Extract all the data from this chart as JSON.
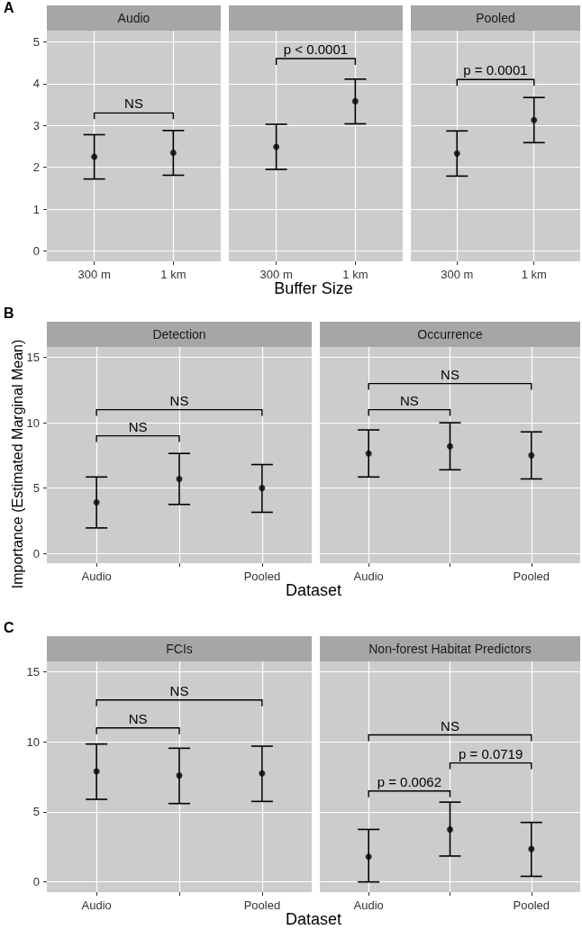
{
  "chart_data": [
    {
      "type": "scatter",
      "title": "Audio",
      "categories": [
        "300 m",
        "1 km"
      ],
      "values": [
        2.25,
        2.35
      ],
      "errors": [
        [
          1.72,
          2.78
        ],
        [
          1.81,
          2.88
        ]
      ],
      "color": "#000000",
      "marker": "circle",
      "ylim": [
        -0.25,
        5.27
      ],
      "yticks": [
        0,
        1,
        2,
        3,
        4,
        5
      ],
      "grid": true,
      "annotations": [
        "A",
        "NS"
      ]
    },
    {
      "type": "scatter",
      "title": null,
      "categories": [
        "300 m",
        "1 km"
      ],
      "values": [
        2.49,
        3.58
      ],
      "errors": [
        [
          1.95,
          3.03
        ],
        [
          3.04,
          4.11
        ]
      ],
      "color": "#000000",
      "marker": "circle",
      "ylim": [
        -0.25,
        5.27
      ],
      "yticks": [
        0,
        1,
        2,
        3,
        4,
        5
      ],
      "grid": true,
      "tick_labels": "x",
      "xlabel": "Buffer Size",
      "annotations": [
        "p < 0.0001"
      ]
    },
    {
      "type": "scatter",
      "title": "Pooled",
      "categories": [
        "300 m",
        "1 km"
      ],
      "values": [
        2.33,
        3.13
      ],
      "errors": [
        [
          1.79,
          2.87
        ],
        [
          2.59,
          3.67
        ]
      ],
      "color": "#000000",
      "marker": "circle",
      "ylim": [
        -0.25,
        5.27
      ],
      "yticks": [
        0,
        1,
        2,
        3,
        4,
        5
      ],
      "grid": true,
      "tick_labels": "x",
      "annotations": [
        "p = 0.0001"
      ]
    },
    {
      "type": "scatter",
      "title": "Detection",
      "categories": [
        "Audio",
        null,
        "Pooled"
      ],
      "values": [
        3.9,
        5.7,
        5.0
      ],
      "errors": [
        [
          1.95,
          5.85
        ],
        [
          3.75,
          7.65
        ],
        [
          3.15,
          6.8
        ]
      ],
      "color": "#000000",
      "marker": "circle",
      "ylim": [
        -0.75,
        15.8
      ],
      "yticks": [
        0,
        5,
        10,
        15
      ],
      "grid": true,
      "xlabel": "Dataset",
      "ylabel": "Importance (Estimated Marginal Mean)",
      "annotations": [
        "B",
        "NS",
        "NS"
      ]
    },
    {
      "type": "scatter",
      "title": "Occurrence",
      "categories": [
        "Audio",
        null,
        "Pooled"
      ],
      "values": [
        7.65,
        8.2,
        7.5
      ],
      "errors": [
        [
          5.85,
          9.45
        ],
        [
          6.4,
          10.0
        ],
        [
          5.7,
          9.3
        ]
      ],
      "color": "#000000",
      "marker": "circle",
      "ylim": [
        -0.75,
        15.8
      ],
      "yticks": [
        0,
        5,
        10,
        15
      ],
      "grid": true,
      "tick_labels": "x",
      "annotations": [
        "NS",
        "NS"
      ]
    },
    {
      "type": "scatter",
      "title": "FCIs",
      "categories": [
        "Audio",
        null,
        "Pooled"
      ],
      "values": [
        7.9,
        7.6,
        7.75
      ],
      "errors": [
        [
          5.9,
          9.85
        ],
        [
          5.6,
          9.55
        ],
        [
          5.75,
          9.7
        ]
      ],
      "color": "#000000",
      "marker": "circle",
      "ylim": [
        -0.73,
        15.75
      ],
      "yticks": [
        0,
        5,
        10,
        15
      ],
      "grid": true,
      "xlabel": "Dataset",
      "annotations": [
        "C",
        "NS",
        "NS"
      ]
    },
    {
      "type": "scatter",
      "title": "Non-forest Habitat Predictors",
      "categories": [
        "Audio",
        null,
        "Pooled"
      ],
      "values": [
        1.8,
        3.75,
        2.35
      ],
      "errors": [
        [
          0,
          3.75
        ],
        [
          1.85,
          5.7
        ],
        [
          0.4,
          4.25
        ]
      ],
      "color": "#000000",
      "marker": "circle",
      "ylim": [
        -0.73,
        15.75
      ],
      "yticks": [
        0,
        5,
        10,
        15
      ],
      "grid": true,
      "tick_labels": "x",
      "annotations": [
        "p = 0.0062",
        "p = 0.0719",
        "NS"
      ]
    }
  ]
}
